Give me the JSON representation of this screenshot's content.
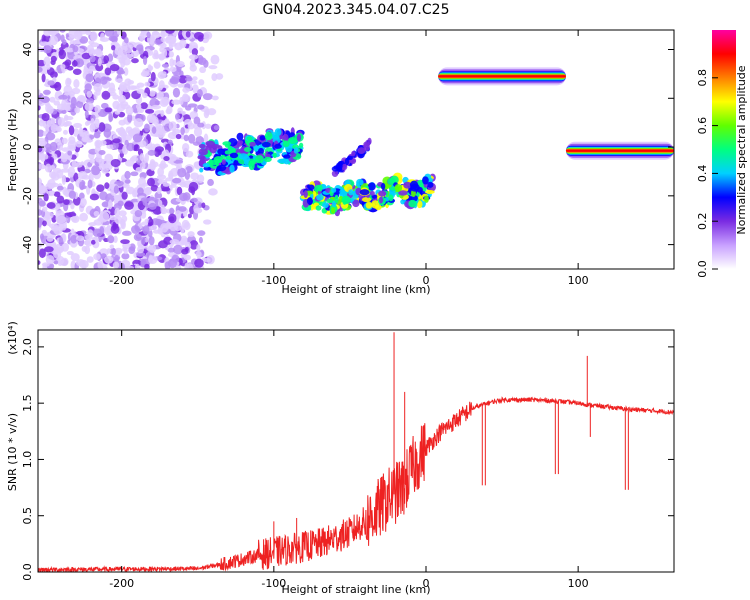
{
  "title": "GN04.2023.345.04.07.C25",
  "chart_data": [
    {
      "type": "heatmap",
      "xlabel": "Height of straight line (km)",
      "ylabel": "Frequency (Hz)",
      "xlim": [
        -255,
        163
      ],
      "ylim": [
        -50,
        48
      ],
      "xticks": [
        -200,
        -100,
        0,
        100
      ],
      "yticks": [
        -40,
        -20,
        0,
        20,
        40
      ],
      "colorbar": {
        "label": "Normalized spectral amplitude",
        "range": [
          0,
          1
        ],
        "ticks": [
          "0.0",
          "0.2",
          "0.4",
          "0.6",
          "0.8"
        ],
        "tick_values": [
          0.0,
          0.2,
          0.4,
          0.6,
          0.8
        ],
        "colors": [
          "#ffffff",
          "#c8a0ff",
          "#7a2be2",
          "#0000ff",
          "#00d0ff",
          "#00ff80",
          "#60ff00",
          "#ffff00",
          "#ff8000",
          "#ff0000",
          "#ff00a0"
        ]
      },
      "features": [
        {
          "name": "noise",
          "x": [
            -255,
            -145
          ],
          "y": [
            -50,
            48
          ],
          "amplitude": 0.15
        },
        {
          "name": "track1",
          "x": [
            -148,
            -82
          ],
          "y_start": -5,
          "y_end": 2,
          "amplitude": 0.4
        },
        {
          "name": "track2",
          "x": [
            -80,
            5
          ],
          "y_start": -22,
          "y_end": -17,
          "amplitude": 0.6
        },
        {
          "name": "line1",
          "x": [
            8,
            92
          ],
          "y": 29,
          "amplitude": 0.9
        },
        {
          "name": "line2",
          "x": [
            92,
            163
          ],
          "y": -1.5,
          "amplitude": 0.95
        }
      ]
    },
    {
      "type": "line",
      "xlabel": "Height of straight line (km)",
      "ylabel": "SNR (10 * v/v)",
      "y_multiplier": "(x10⁴)",
      "xlim": [
        -255,
        163
      ],
      "ylim": [
        0,
        2.15
      ],
      "xticks": [
        -200,
        -100,
        0,
        100
      ],
      "yticks": [
        "0.0",
        "0.5",
        "1.0",
        "1.5",
        "2.0"
      ],
      "ytick_values": [
        0.0,
        0.5,
        1.0,
        1.5,
        2.0
      ],
      "color": "#ee2222",
      "baseline_points": [
        [
          -255,
          0.02
        ],
        [
          -150,
          0.03
        ],
        [
          -130,
          0.08
        ],
        [
          -110,
          0.15
        ],
        [
          -90,
          0.2
        ],
        [
          -70,
          0.25
        ],
        [
          -50,
          0.35
        ],
        [
          -35,
          0.5
        ],
        [
          -25,
          0.65
        ],
        [
          -15,
          0.75
        ],
        [
          -10,
          0.9
        ],
        [
          0,
          1.1
        ],
        [
          10,
          1.25
        ],
        [
          20,
          1.35
        ],
        [
          30,
          1.45
        ],
        [
          40,
          1.5
        ],
        [
          50,
          1.53
        ],
        [
          70,
          1.53
        ],
        [
          85,
          1.52
        ],
        [
          100,
          1.5
        ],
        [
          110,
          1.48
        ],
        [
          130,
          1.45
        ],
        [
          163,
          1.42
        ]
      ],
      "spikes": [
        {
          "x": -21,
          "y": 2.13
        },
        {
          "x": -14,
          "y": 1.6
        },
        {
          "x": -100,
          "y": 0.45
        },
        {
          "x": -85,
          "y": 0.48
        },
        {
          "x": 106,
          "y": 1.92
        },
        {
          "x": 108,
          "y": 1.2
        }
      ],
      "dips": [
        {
          "x": 37,
          "y": 0.77
        },
        {
          "x": 39,
          "y": 0.77
        },
        {
          "x": 85,
          "y": 0.87
        },
        {
          "x": 87,
          "y": 0.87
        },
        {
          "x": 131,
          "y": 0.73
        },
        {
          "x": 133,
          "y": 0.73
        }
      ]
    }
  ]
}
